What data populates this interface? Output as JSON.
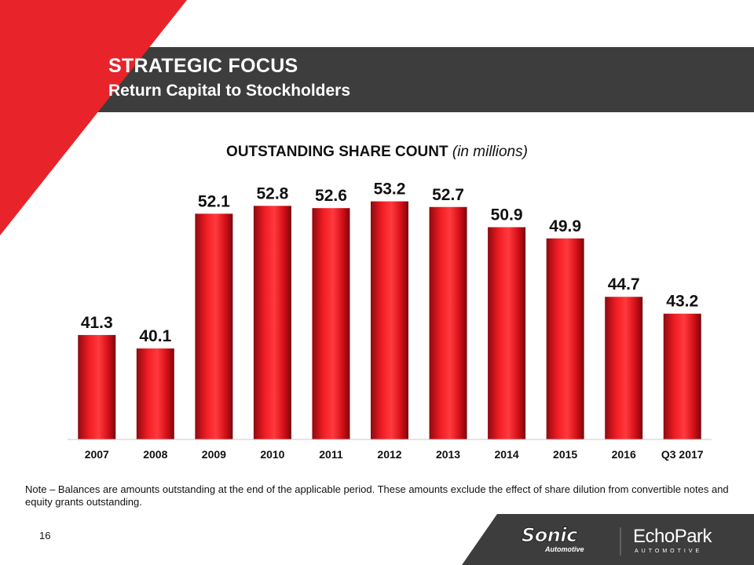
{
  "header": {
    "title": "STRATEGIC FOCUS",
    "subtitle": "Return Capital to Stockholders"
  },
  "chart_heading": {
    "bold": "OUTSTANDING SHARE COUNT",
    "italic": "(in millions)"
  },
  "chart_data": {
    "type": "bar",
    "title": "OUTSTANDING SHARE COUNT (in millions)",
    "categories": [
      "2007",
      "2008",
      "2009",
      "2010",
      "2011",
      "2012",
      "2013",
      "2014",
      "2015",
      "2016",
      "Q3 2017"
    ],
    "values": [
      41.3,
      40.1,
      52.1,
      52.8,
      52.6,
      53.2,
      52.7,
      50.9,
      49.9,
      44.7,
      43.2
    ],
    "labels": [
      "41.3",
      "40.1",
      "52.1",
      "52.8",
      "52.6",
      "53.2",
      "52.7",
      "50.9",
      "49.9",
      "44.7",
      "43.2"
    ],
    "xlabel": "",
    "ylabel": "",
    "ylim": [
      32,
      54.5
    ],
    "grid": false,
    "legend": "none",
    "bar_color": "#e8101a"
  },
  "note": "Note – Balances are amounts outstanding at the end of the applicable period.  These amounts exclude the effect of share dilution from convertible notes and equity grants outstanding.",
  "page_number": "16",
  "logos": {
    "sonic_main": "Sonic",
    "sonic_sub": "Automotive",
    "echopark_main": "EchoPark",
    "echopark_sub": "AUTOMOTIVE"
  },
  "colors": {
    "accent_red": "#e8232a",
    "banner_gray": "#3d3d3d"
  }
}
